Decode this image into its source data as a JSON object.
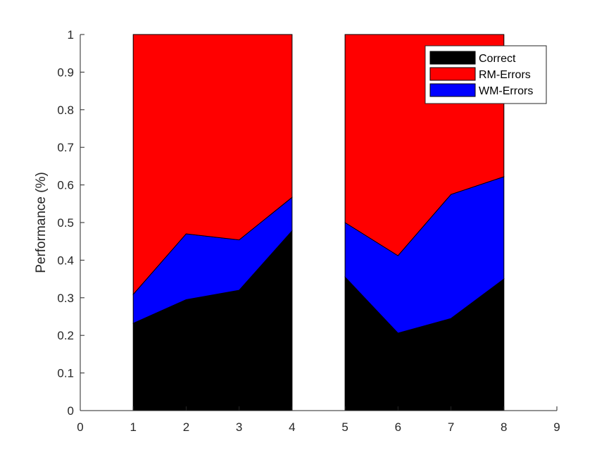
{
  "chart_data": {
    "type": "area",
    "title": "",
    "xlabel": "",
    "ylabel": "Performance (%)",
    "xlim": [
      0,
      9
    ],
    "ylim": [
      0,
      1
    ],
    "xticks": [
      "0",
      "1",
      "2",
      "3",
      "4",
      "5",
      "6",
      "7",
      "8",
      "9"
    ],
    "yticks": [
      "0",
      "0.1",
      "0.2",
      "0.3",
      "0.4",
      "0.5",
      "0.6",
      "0.7",
      "0.8",
      "0.9",
      "1"
    ],
    "stacked": true,
    "grid": false,
    "legend_position": "top-right",
    "groups": [
      {
        "x": [
          1,
          2,
          3,
          4
        ]
      },
      {
        "x": [
          5,
          6,
          7,
          8
        ]
      }
    ],
    "series": [
      {
        "name": "Correct",
        "color": "#000000",
        "values": [
          [
            0.232,
            0.295,
            0.32,
            0.478
          ],
          [
            0.355,
            0.206,
            0.245,
            0.35
          ]
        ]
      },
      {
        "name": "RM-Errors",
        "color": "#ff0000",
        "values": [
          [
            0.691,
            0.53,
            0.546,
            0.433
          ],
          [
            0.5,
            0.588,
            0.425,
            0.378
          ]
        ]
      },
      {
        "name": "WM-Errors",
        "color": "#0000ff",
        "values": [
          [
            0.077,
            0.175,
            0.134,
            0.089
          ],
          [
            0.145,
            0.206,
            0.33,
            0.272
          ]
        ]
      }
    ],
    "stack_order": [
      "Correct",
      "WM-Errors",
      "RM-Errors"
    ]
  }
}
